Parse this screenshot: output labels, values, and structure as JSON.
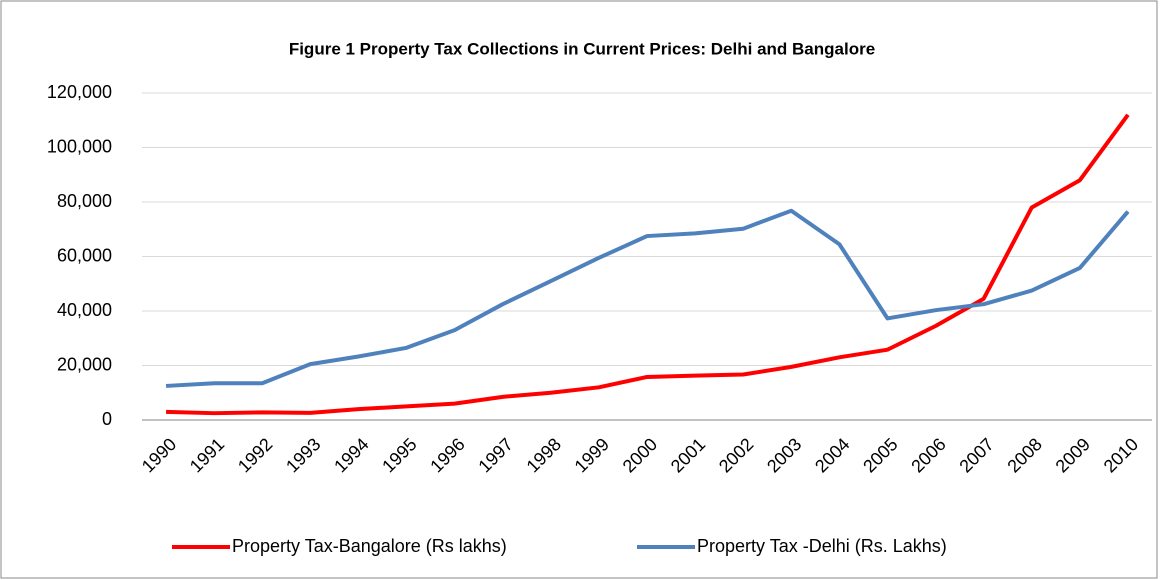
{
  "chart_data": {
    "type": "line",
    "title": "Figure 1 Property Tax Collections in Current Prices: Delhi and Bangalore",
    "categories": [
      "1990",
      "1991",
      "1992",
      "1993",
      "1994",
      "1995",
      "1996",
      "1997",
      "1998",
      "1999",
      "2000",
      "2001",
      "2002",
      "2003",
      "2004",
      "2005",
      "2006",
      "2007",
      "2008",
      "2009",
      "2010"
    ],
    "series": [
      {
        "name": "Property Tax-Bangalore (Rs lakhs)",
        "color": "#ff0000",
        "values": [
          3000,
          2500,
          2800,
          2600,
          4000,
          5000,
          6000,
          8500,
          10000,
          12000,
          15800,
          16300,
          16700,
          19500,
          23000,
          25800,
          34500,
          44500,
          78000,
          88000,
          112000
        ]
      },
      {
        "name": "Property Tax -Delhi (Rs. Lakhs)",
        "color": "#4f81bd",
        "values": [
          12500,
          13500,
          13500,
          20500,
          23300,
          26500,
          33000,
          42500,
          51000,
          59500,
          67500,
          68500,
          70200,
          76800,
          64500,
          37300,
          40300,
          42500,
          47500,
          55800,
          76500
        ]
      }
    ],
    "ylim": [
      0,
      120000
    ],
    "yticks": [
      0,
      {
        "value": 20000,
        "label": "20,000"
      },
      {
        "value": 40000,
        "label": "40,000"
      },
      {
        "value": 60000,
        "label": "60,000"
      },
      {
        "value": 80000,
        "label": "80,000"
      },
      {
        "value": 100000,
        "label": "100,000"
      },
      {
        "value": 120000,
        "label": "120,000"
      }
    ],
    "grid": true,
    "legend": "bottom"
  }
}
